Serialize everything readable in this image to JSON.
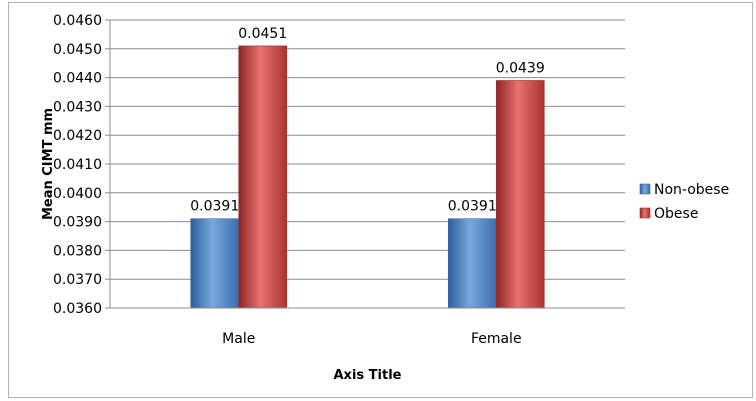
{
  "chart_data": {
    "type": "bar",
    "title": "",
    "xlabel": "Axis Title",
    "ylabel": "Mean CIMT mm",
    "categories": [
      "Male",
      "Female"
    ],
    "series": [
      {
        "name": "Non-obese",
        "values": [
          0.0391,
          0.0391
        ],
        "labels": [
          "0.0391",
          "0.0391"
        ],
        "color": "#4f81bd"
      },
      {
        "name": "Obese",
        "values": [
          0.0451,
          0.0439
        ],
        "labels": [
          "0.0451",
          "0.0439"
        ],
        "color": "#c0504d"
      }
    ],
    "ylim": [
      0.036,
      0.046
    ],
    "yticks": [
      "0.0360",
      "0.0370",
      "0.0380",
      "0.0390",
      "0.0400",
      "0.0410",
      "0.0420",
      "0.0430",
      "0.0440",
      "0.0450",
      "0.0460"
    ],
    "grid": true,
    "legend_position": "right"
  }
}
